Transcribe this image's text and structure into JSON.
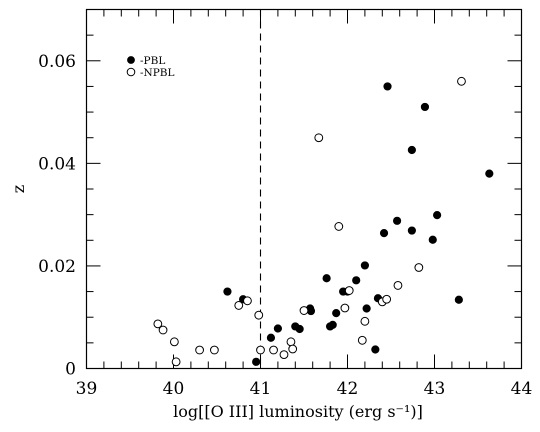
{
  "chart_data": {
    "type": "scatter",
    "xlabel": "log[[O III] luminosity (erg s⁻¹)]",
    "ylabel": "z",
    "xlim": [
      39,
      44
    ],
    "ylim": [
      0,
      0.07
    ],
    "x_ticks": [
      "39",
      "40",
      "41",
      "42",
      "43",
      "44"
    ],
    "y_ticks": [
      "0",
      "0.02",
      "0.04",
      "0.06"
    ],
    "grid": false,
    "legend_position": "top-left",
    "reference_lines": [
      {
        "axis": "x",
        "value": 41.0,
        "style": "dashed"
      }
    ],
    "series": [
      {
        "name": "PBL",
        "marker": "filled-circle",
        "color": "#000000",
        "points": [
          [
            40.62,
            0.015
          ],
          [
            40.8,
            0.0135
          ],
          [
            40.95,
            0.0013
          ],
          [
            41.12,
            0.006
          ],
          [
            41.2,
            0.0078
          ],
          [
            41.4,
            0.0082
          ],
          [
            41.45,
            0.0077
          ],
          [
            41.57,
            0.0117
          ],
          [
            41.58,
            0.0112
          ],
          [
            41.76,
            0.0176
          ],
          [
            41.8,
            0.0082
          ],
          [
            41.83,
            0.0085
          ],
          [
            41.87,
            0.0108
          ],
          [
            41.95,
            0.015
          ],
          [
            42.0,
            0.015
          ],
          [
            42.1,
            0.0172
          ],
          [
            42.2,
            0.0201
          ],
          [
            42.22,
            0.0117
          ],
          [
            42.35,
            0.0137
          ],
          [
            42.32,
            0.0037
          ],
          [
            42.42,
            0.0264
          ],
          [
            42.46,
            0.055
          ],
          [
            42.57,
            0.0288
          ],
          [
            42.74,
            0.0269
          ],
          [
            42.74,
            0.0426
          ],
          [
            42.89,
            0.051
          ],
          [
            42.98,
            0.0251
          ],
          [
            43.03,
            0.0299
          ],
          [
            43.28,
            0.0134
          ],
          [
            43.63,
            0.038
          ]
        ]
      },
      {
        "name": "NPBL",
        "marker": "open-circle",
        "color": "#000000",
        "points": [
          [
            39.82,
            0.0087
          ],
          [
            39.88,
            0.0075
          ],
          [
            40.01,
            0.0052
          ],
          [
            40.03,
            0.0013
          ],
          [
            40.3,
            0.0036
          ],
          [
            40.47,
            0.0036
          ],
          [
            40.75,
            0.0123
          ],
          [
            40.85,
            0.0132
          ],
          [
            40.98,
            0.0104
          ],
          [
            41.0,
            0.0036
          ],
          [
            41.15,
            0.0036
          ],
          [
            41.27,
            0.0027
          ],
          [
            41.35,
            0.0052
          ],
          [
            41.37,
            0.0038
          ],
          [
            41.5,
            0.0113
          ],
          [
            41.67,
            0.045
          ],
          [
            41.9,
            0.0277
          ],
          [
            41.97,
            0.0118
          ],
          [
            42.02,
            0.0152
          ],
          [
            42.17,
            0.0055
          ],
          [
            42.2,
            0.0092
          ],
          [
            42.4,
            0.013
          ],
          [
            42.45,
            0.0135
          ],
          [
            42.58,
            0.0162
          ],
          [
            42.82,
            0.0197
          ],
          [
            43.31,
            0.056
          ]
        ]
      }
    ]
  }
}
